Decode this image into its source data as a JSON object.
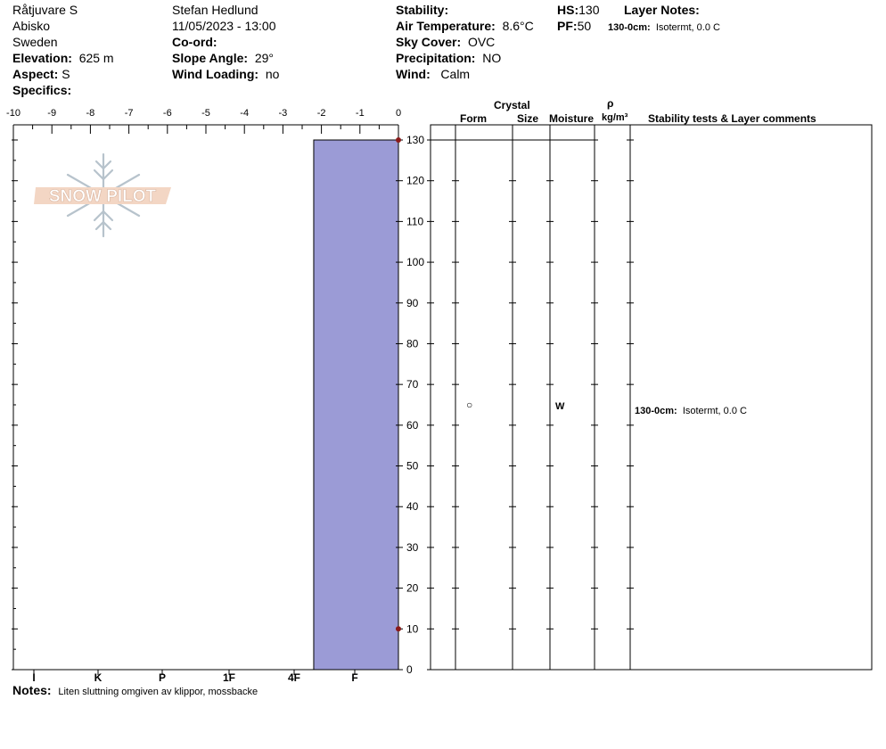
{
  "header": {
    "site": "Råtjuvare S",
    "location": "Abisko",
    "country": "Sweden",
    "elevation_label": "Elevation:",
    "elevation_value": "625 m",
    "aspect_label": "Aspect:",
    "aspect_value": "S",
    "specifics_label": "Specifics:",
    "observer": "Stefan Hedlund",
    "datetime": "11/05/2023 - 13:00",
    "coord_label": "Co-ord:",
    "slope_label": "Slope Angle:",
    "slope_value": "29°",
    "wind_loading_label": "Wind Loading:",
    "wind_loading_value": "no",
    "stability_label": "Stability:",
    "air_temp_label": "Air Temperature:",
    "air_temp_value": "8.6°C",
    "sky_label": "Sky Cover:",
    "sky_value": "OVC",
    "precip_label": "Precipitation:",
    "precip_value": "NO",
    "wind_label": "Wind:",
    "wind_value": "Calm",
    "hs_label": "HS:",
    "hs_value": "130",
    "pf_label": "PF:",
    "pf_value": "50",
    "layer_notes_label": "Layer Notes:",
    "layer_note_depth": "130-0cm:",
    "layer_note_text": "Isotermt, 0.0 C"
  },
  "logo": {
    "text": "SNOW PILOT"
  },
  "notes": {
    "label": "Notes:",
    "text": "Liten sluttning omgiven av klippor, mossbacke"
  },
  "table": {
    "crystal_label": "Crystal",
    "form_label": "Form",
    "size_label": "Size",
    "moisture_label": "Moisture",
    "rho_label": "ρ",
    "density_unit": "kg/m³",
    "comments_label": "Stability tests & Layer comments",
    "row": {
      "form_symbol": "○",
      "moisture": "W",
      "comment_depth": "130-0cm:",
      "comment_text": "Isotermt, 0.0 C"
    }
  },
  "colors": {
    "hardness_fill": "#9b9bd6",
    "marker": "#8b1a1a"
  },
  "chart_data": {
    "type": "bar",
    "x_top_ticks": [
      "-10",
      "-9",
      "-8",
      "-7",
      "-6",
      "-5",
      "-4",
      "-3",
      "-2",
      "-1",
      "0"
    ],
    "x_top_range": [
      -10,
      0
    ],
    "hardness_ticks": [
      "I",
      "K",
      "P",
      "1F",
      "4F",
      "F"
    ],
    "y_range": [
      0,
      130
    ],
    "y_ticks": [
      "0",
      "10",
      "20",
      "30",
      "40",
      "50",
      "60",
      "70",
      "80",
      "90",
      "100",
      "110",
      "120",
      "130"
    ],
    "temperature_points": [
      {
        "depth": 130,
        "temp": 0
      },
      {
        "depth": 10,
        "temp": 0
      }
    ],
    "layers": [
      {
        "top": 130,
        "bottom": 0,
        "hardness_left_fraction": 0.78
      }
    ]
  }
}
